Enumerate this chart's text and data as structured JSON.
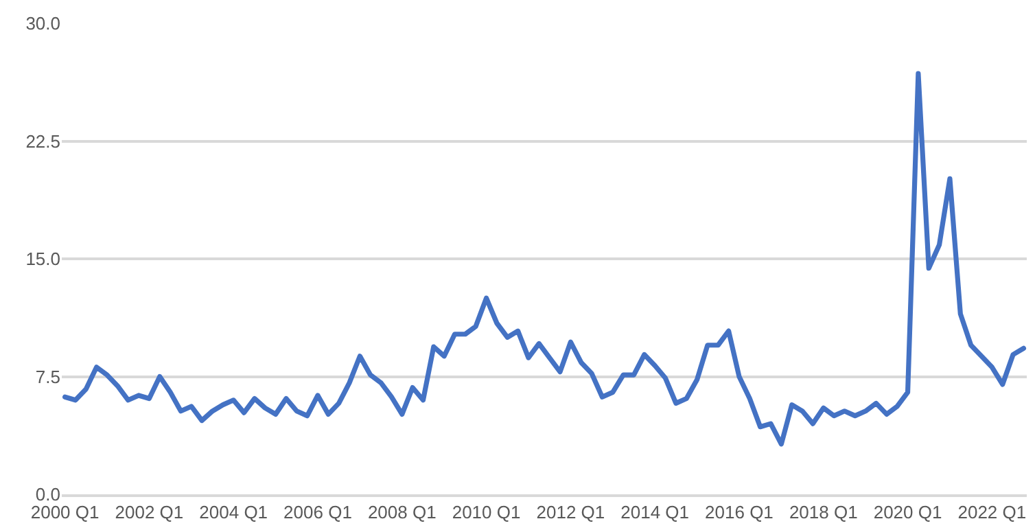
{
  "chart_data": {
    "type": "line",
    "categories": [
      "2000 Q1",
      null,
      null,
      null,
      null,
      null,
      null,
      null,
      "2002 Q1",
      null,
      null,
      null,
      null,
      null,
      null,
      null,
      "2004 Q1",
      null,
      null,
      null,
      null,
      null,
      null,
      null,
      "2006 Q1",
      null,
      null,
      null,
      null,
      null,
      null,
      null,
      "2008 Q1",
      null,
      null,
      null,
      null,
      null,
      null,
      null,
      "2010 Q1",
      null,
      null,
      null,
      null,
      null,
      null,
      null,
      "2012 Q1",
      null,
      null,
      null,
      null,
      null,
      null,
      null,
      "2014 Q1",
      null,
      null,
      null,
      null,
      null,
      null,
      null,
      "2016 Q1",
      null,
      null,
      null,
      null,
      null,
      null,
      null,
      "2018 Q1",
      null,
      null,
      null,
      null,
      null,
      null,
      null,
      "2020 Q1",
      null,
      null,
      null,
      null,
      null,
      null,
      null,
      "2022 Q1",
      null,
      null,
      null
    ],
    "series": [
      {
        "color": "#4472c4",
        "values": [
          6.2,
          6.0,
          6.7,
          8.1,
          7.6,
          6.9,
          6.0,
          6.3,
          6.1,
          7.5,
          6.5,
          5.3,
          5.6,
          4.7,
          5.3,
          5.7,
          6.0,
          5.2,
          6.1,
          5.5,
          5.1,
          6.1,
          5.3,
          5.0,
          6.3,
          5.1,
          5.8,
          7.1,
          8.8,
          7.6,
          7.1,
          6.2,
          5.1,
          6.8,
          6.0,
          9.4,
          8.8,
          10.2,
          10.2,
          10.7,
          12.5,
          10.9,
          10.0,
          10.4,
          8.7,
          9.6,
          8.7,
          7.8,
          9.7,
          8.4,
          7.7,
          6.2,
          6.5,
          7.6,
          7.6,
          8.9,
          8.2,
          7.4,
          5.8,
          6.1,
          7.3,
          9.5,
          9.5,
          10.4,
          7.5,
          6.1,
          4.3,
          4.5,
          3.2,
          5.7,
          5.3,
          4.5,
          5.5,
          5.0,
          5.3,
          5.0,
          5.3,
          5.8,
          5.1,
          5.6,
          6.5,
          26.8,
          14.4,
          15.9,
          20.1,
          11.5,
          9.5,
          8.8,
          8.1,
          7.0,
          8.9,
          9.3
        ]
      }
    ],
    "ylim": [
      0,
      30
    ],
    "yticks": [
      {
        "value": 0,
        "label": "0.0"
      },
      {
        "value": 7.5,
        "label": "7.5"
      },
      {
        "value": 15,
        "label": "15.0"
      },
      {
        "value": 22.5,
        "label": "22.5"
      },
      {
        "value": 30,
        "label": "30.0"
      }
    ],
    "grid": "y",
    "marker": "none",
    "line_style": "solid"
  }
}
